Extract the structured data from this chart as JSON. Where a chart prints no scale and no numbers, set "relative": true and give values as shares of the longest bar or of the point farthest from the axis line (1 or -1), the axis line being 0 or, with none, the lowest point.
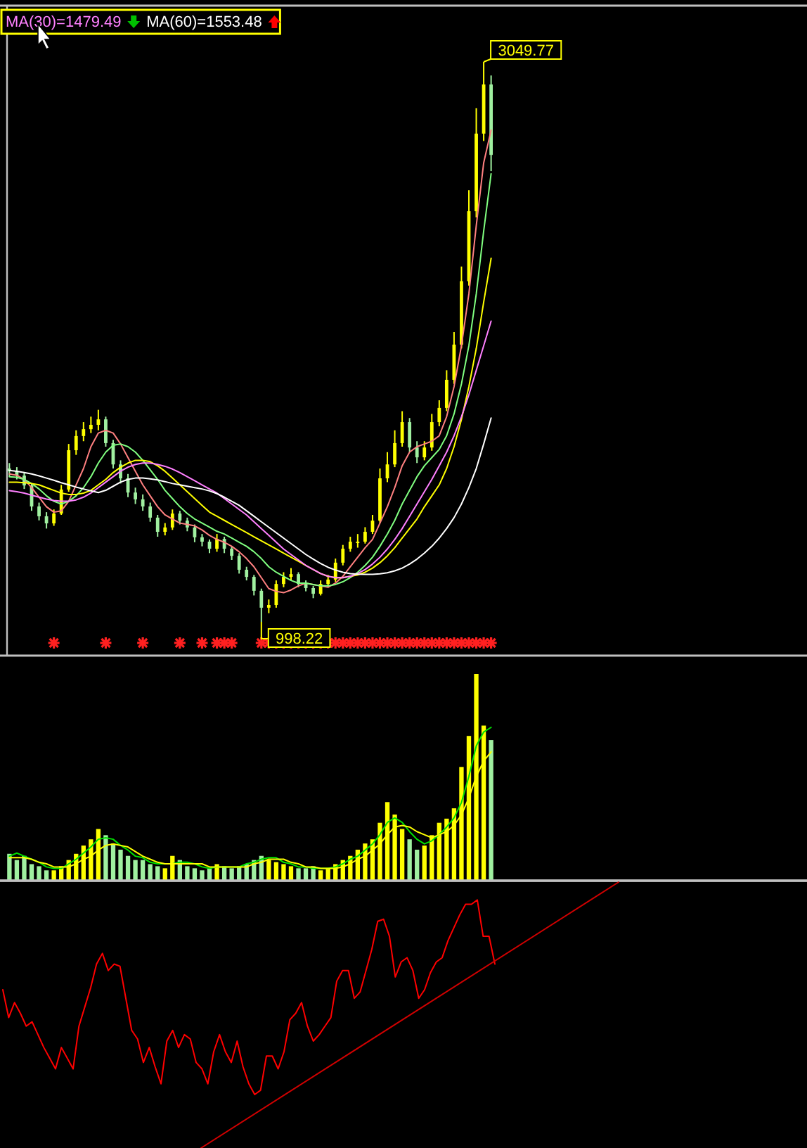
{
  "chart_data": [
    {
      "type": "candlestick",
      "legend": "top left",
      "categories": [
        null,
        null,
        null,
        null,
        null,
        null,
        null,
        null,
        null,
        null,
        null,
        null,
        null,
        null,
        null,
        null,
        null,
        null,
        null,
        null,
        null,
        null,
        null,
        null,
        null,
        null,
        null,
        null,
        null,
        null,
        null,
        null,
        null,
        null,
        null,
        null,
        null,
        null,
        null,
        null,
        null,
        null,
        null,
        null,
        null,
        null,
        null,
        null,
        null,
        null,
        null,
        null,
        null,
        null,
        null,
        null,
        null,
        null,
        null,
        null,
        null,
        null,
        null,
        null,
        null,
        null
      ],
      "ohlc": [
        [
          1560,
          1580,
          1530,
          1550
        ],
        [
          1550,
          1565,
          1520,
          1534
        ],
        [
          1534,
          1545,
          1485,
          1498
        ],
        [
          1498,
          1505,
          1405,
          1421
        ],
        [
          1421,
          1435,
          1370,
          1385
        ],
        [
          1385,
          1400,
          1340,
          1359
        ],
        [
          1359,
          1410,
          1350,
          1395
        ],
        [
          1395,
          1500,
          1390,
          1483
        ],
        [
          1483,
          1650,
          1475,
          1627
        ],
        [
          1627,
          1700,
          1610,
          1679
        ],
        [
          1679,
          1730,
          1660,
          1704
        ],
        [
          1704,
          1750,
          1690,
          1720
        ],
        [
          1720,
          1775,
          1700,
          1740
        ],
        [
          1740,
          1750,
          1640,
          1653
        ],
        [
          1653,
          1665,
          1560,
          1575
        ],
        [
          1575,
          1590,
          1505,
          1524
        ],
        [
          1524,
          1540,
          1455,
          1472
        ],
        [
          1472,
          1490,
          1430,
          1447
        ],
        [
          1447,
          1465,
          1405,
          1421
        ],
        [
          1421,
          1435,
          1365,
          1380
        ],
        [
          1380,
          1390,
          1310,
          1328
        ],
        [
          1328,
          1360,
          1315,
          1344
        ],
        [
          1344,
          1410,
          1335,
          1395
        ],
        [
          1395,
          1405,
          1355,
          1369
        ],
        [
          1369,
          1380,
          1330,
          1344
        ],
        [
          1344,
          1355,
          1290,
          1308
        ],
        [
          1308,
          1320,
          1275,
          1292
        ],
        [
          1292,
          1300,
          1250,
          1266
        ],
        [
          1266,
          1320,
          1255,
          1302
        ],
        [
          1302,
          1310,
          1250,
          1266
        ],
        [
          1266,
          1275,
          1225,
          1240
        ],
        [
          1240,
          1250,
          1175,
          1189
        ],
        [
          1189,
          1200,
          1150,
          1163
        ],
        [
          1163,
          1170,
          1095,
          1112
        ],
        [
          1112,
          1120,
          998.22,
          1050
        ],
        [
          1050,
          1080,
          1030,
          1060
        ],
        [
          1060,
          1150,
          1050,
          1137
        ],
        [
          1137,
          1180,
          1125,
          1163
        ],
        [
          1163,
          1195,
          1150,
          1173
        ],
        [
          1173,
          1180,
          1125,
          1137
        ],
        [
          1137,
          1150,
          1110,
          1122
        ],
        [
          1122,
          1130,
          1085,
          1101
        ],
        [
          1101,
          1150,
          1095,
          1137
        ],
        [
          1137,
          1170,
          1125,
          1153
        ],
        [
          1153,
          1230,
          1145,
          1215
        ],
        [
          1215,
          1280,
          1205,
          1266
        ],
        [
          1266,
          1310,
          1255,
          1292
        ],
        [
          1292,
          1320,
          1270,
          1292
        ],
        [
          1292,
          1345,
          1285,
          1328
        ],
        [
          1328,
          1390,
          1320,
          1369
        ],
        [
          1369,
          1560,
          1360,
          1524
        ],
        [
          1524,
          1620,
          1510,
          1575
        ],
        [
          1575,
          1700,
          1565,
          1653
        ],
        [
          1653,
          1770,
          1640,
          1730
        ],
        [
          1730,
          1745,
          1620,
          1637
        ],
        [
          1637,
          1660,
          1580,
          1601
        ],
        [
          1601,
          1660,
          1590,
          1637
        ],
        [
          1637,
          1760,
          1625,
          1730
        ],
        [
          1730,
          1810,
          1715,
          1782
        ],
        [
          1782,
          1920,
          1770,
          1885
        ],
        [
          1885,
          2060,
          1870,
          2014
        ],
        [
          2014,
          2300,
          2000,
          2246
        ],
        [
          2246,
          2580,
          2230,
          2503
        ],
        [
          2503,
          2880,
          2480,
          2787
        ],
        [
          2787,
          3049.77,
          2760,
          2967
        ],
        [
          2967,
          3000,
          2650,
          2709
        ]
      ],
      "colors": [
        "#a0f0a0",
        "#a0f0a0",
        "#a0f0a0",
        "#a0f0a0",
        "#a0f0a0",
        "#a0f0a0",
        "#ffff00",
        "#ffff00",
        "#ffff00",
        "#ffff00",
        "#ffff00",
        "#ffff00",
        "#ffff00",
        "#a0f0a0",
        "#a0f0a0",
        "#a0f0a0",
        "#a0f0a0",
        "#a0f0a0",
        "#a0f0a0",
        "#a0f0a0",
        "#a0f0a0",
        "#ffff00",
        "#ffff00",
        "#a0f0a0",
        "#a0f0a0",
        "#a0f0a0",
        "#a0f0a0",
        "#a0f0a0",
        "#ffff00",
        "#a0f0a0",
        "#a0f0a0",
        "#a0f0a0",
        "#a0f0a0",
        "#a0f0a0",
        "#a0f0a0",
        "#ffff00",
        "#ffff00",
        "#ffff00",
        "#ffff00",
        "#a0f0a0",
        "#a0f0a0",
        "#a0f0a0",
        "#ffff00",
        "#ffff00",
        "#ffff00",
        "#ffff00",
        "#ffff00",
        "#ffff00",
        "#ffff00",
        "#ffff00",
        "#ffff00",
        "#ffff00",
        "#ffff00",
        "#ffff00",
        "#a0f0a0",
        "#a0f0a0",
        "#ffff00",
        "#ffff00",
        "#ffff00",
        "#ffff00",
        "#ffff00",
        "#ffff00",
        "#ffff00",
        "#ffff00",
        "#ffff00",
        "#a0f0a0"
      ],
      "series": [
        {
          "type": "line",
          "color": "#ff8080",
          "values": [
            1540,
            1535,
            1520,
            1490,
            1455,
            1420,
            1400,
            1405,
            1440,
            1500,
            1560,
            1640,
            1690,
            1700,
            1690,
            1650,
            1600,
            1550,
            1500,
            1460,
            1420,
            1390,
            1375,
            1360,
            1355,
            1350,
            1335,
            1315,
            1300,
            1290,
            1275,
            1255,
            1230,
            1200,
            1160,
            1120,
            1110,
            1105,
            1115,
            1130,
            1140,
            1135,
            1130,
            1125,
            1140,
            1165,
            1200,
            1235,
            1270,
            1300,
            1360,
            1420,
            1490,
            1570,
            1620,
            1640,
            1650,
            1660,
            1680,
            1750,
            1860,
            2010,
            2200,
            2450,
            2680,
            2800
          ]
        },
        {
          "type": "line",
          "color": "#80ff80",
          "values": [
            1530,
            1528,
            1520,
            1505,
            1485,
            1460,
            1440,
            1430,
            1440,
            1460,
            1490,
            1530,
            1580,
            1620,
            1645,
            1650,
            1640,
            1620,
            1590,
            1555,
            1520,
            1480,
            1450,
            1420,
            1395,
            1375,
            1360,
            1345,
            1330,
            1320,
            1305,
            1290,
            1275,
            1255,
            1230,
            1200,
            1180,
            1165,
            1150,
            1140,
            1140,
            1135,
            1130,
            1130,
            1135,
            1145,
            1160,
            1180,
            1205,
            1235,
            1275,
            1320,
            1370,
            1430,
            1480,
            1530,
            1570,
            1600,
            1630,
            1680,
            1760,
            1870,
            2010,
            2200,
            2430,
            2640
          ]
        },
        {
          "type": "line",
          "color": "#ffff00",
          "values": [
            1510,
            1510,
            1508,
            1505,
            1500,
            1490,
            1480,
            1470,
            1465,
            1465,
            1470,
            1480,
            1500,
            1520,
            1545,
            1565,
            1580,
            1590,
            1590,
            1585,
            1570,
            1550,
            1525,
            1500,
            1475,
            1450,
            1425,
            1400,
            1385,
            1370,
            1355,
            1340,
            1325,
            1310,
            1295,
            1280,
            1265,
            1250,
            1235,
            1220,
            1205,
            1190,
            1175,
            1165,
            1160,
            1160,
            1165,
            1170,
            1180,
            1195,
            1215,
            1240,
            1270,
            1305,
            1340,
            1375,
            1420,
            1460,
            1500,
            1560,
            1640,
            1740,
            1860,
            2000,
            2170,
            2330
          ]
        },
        {
          "type": "line",
          "name": "MA(30)=1479.49",
          "color": "#ff80ff",
          "values": [
            1479,
            1475,
            1470,
            1462,
            1455,
            1448,
            1443,
            1440,
            1440,
            1445,
            1455,
            1470,
            1490,
            1510,
            1530,
            1550,
            1565,
            1575,
            1580,
            1580,
            1575,
            1568,
            1558,
            1545,
            1530,
            1515,
            1500,
            1485,
            1470,
            1450,
            1430,
            1410,
            1390,
            1365,
            1340,
            1315,
            1290,
            1265,
            1245,
            1225,
            1205,
            1190,
            1175,
            1165,
            1160,
            1160,
            1165,
            1175,
            1190,
            1210,
            1235,
            1265,
            1300,
            1340,
            1385,
            1430,
            1475,
            1520,
            1570,
            1620,
            1680,
            1750,
            1830,
            1920,
            2010,
            2100
          ]
        },
        {
          "type": "line",
          "name": "MA(60)=1553.48",
          "color": "#ffffff",
          "values": [
            1553,
            1550,
            1545,
            1540,
            1533,
            1525,
            1517,
            1508,
            1500,
            1492,
            1485,
            1478,
            1472,
            1480,
            1495,
            1510,
            1520,
            1525,
            1525,
            1522,
            1518,
            1512,
            1505,
            1500,
            1495,
            1490,
            1485,
            1478,
            1468,
            1455,
            1440,
            1425,
            1405,
            1385,
            1365,
            1345,
            1325,
            1305,
            1285,
            1265,
            1245,
            1228,
            1212,
            1198,
            1188,
            1180,
            1175,
            1173,
            1172,
            1172,
            1174,
            1178,
            1185,
            1195,
            1210,
            1228,
            1250,
            1275,
            1305,
            1340,
            1380,
            1430,
            1490,
            1560,
            1650,
            1745
          ]
        }
      ],
      "annotations": [
        "3049.77",
        "998.22"
      ]
    },
    {
      "type": "bar",
      "relative": true,
      "categories": [
        null,
        null,
        null,
        null,
        null,
        null,
        null,
        null,
        null,
        null,
        null,
        null,
        null,
        null,
        null,
        null,
        null,
        null,
        null,
        null,
        null,
        null,
        null,
        null,
        null,
        null,
        null,
        null,
        null,
        null,
        null,
        null,
        null,
        null,
        null,
        null,
        null,
        null,
        null,
        null,
        null,
        null,
        null,
        null,
        null,
        null,
        null,
        null,
        null,
        null,
        null,
        null,
        null,
        null,
        null,
        null,
        null,
        null,
        null,
        null,
        null,
        null,
        null,
        null,
        null,
        null
      ],
      "values": [
        0.13,
        0.1,
        0.12,
        0.08,
        0.07,
        0.05,
        0.05,
        0.07,
        0.1,
        0.13,
        0.17,
        0.2,
        0.25,
        0.22,
        0.18,
        0.15,
        0.12,
        0.1,
        0.1,
        0.08,
        0.07,
        0.06,
        0.12,
        0.1,
        0.07,
        0.06,
        0.05,
        0.06,
        0.08,
        0.07,
        0.06,
        0.07,
        0.08,
        0.1,
        0.12,
        0.1,
        0.09,
        0.08,
        0.07,
        0.06,
        0.06,
        0.07,
        0.05,
        0.06,
        0.08,
        0.1,
        0.12,
        0.15,
        0.18,
        0.2,
        0.28,
        0.38,
        0.32,
        0.25,
        0.2,
        0.15,
        0.17,
        0.22,
        0.28,
        0.3,
        0.35,
        0.55,
        0.7,
        1.0,
        0.75,
        0.68
      ],
      "colors": [
        "#a0f0a0",
        "#a0f0a0",
        "#a0f0a0",
        "#a0f0a0",
        "#a0f0a0",
        "#a0f0a0",
        "#ffff00",
        "#ffff00",
        "#ffff00",
        "#ffff00",
        "#ffff00",
        "#ffff00",
        "#ffff00",
        "#a0f0a0",
        "#a0f0a0",
        "#a0f0a0",
        "#a0f0a0",
        "#a0f0a0",
        "#a0f0a0",
        "#a0f0a0",
        "#a0f0a0",
        "#ffff00",
        "#ffff00",
        "#a0f0a0",
        "#a0f0a0",
        "#a0f0a0",
        "#a0f0a0",
        "#a0f0a0",
        "#ffff00",
        "#a0f0a0",
        "#a0f0a0",
        "#a0f0a0",
        "#a0f0a0",
        "#a0f0a0",
        "#a0f0a0",
        "#ffff00",
        "#ffff00",
        "#ffff00",
        "#ffff00",
        "#a0f0a0",
        "#a0f0a0",
        "#a0f0a0",
        "#ffff00",
        "#ffff00",
        "#ffff00",
        "#ffff00",
        "#ffff00",
        "#ffff00",
        "#ffff00",
        "#ffff00",
        "#ffff00",
        "#ffff00",
        "#ffff00",
        "#ffff00",
        "#a0f0a0",
        "#a0f0a0",
        "#ffff00",
        "#ffff00",
        "#ffff00",
        "#ffff00",
        "#ffff00",
        "#ffff00",
        "#ffff00",
        "#ffff00",
        "#ffff00",
        "#a0f0a0"
      ]
    },
    {
      "type": "line",
      "relative": true,
      "categories": [
        null,
        null,
        null,
        null,
        null,
        null,
        null,
        null,
        null,
        null,
        null,
        null,
        null,
        null,
        null,
        null,
        null,
        null,
        null,
        null,
        null,
        null,
        null,
        null,
        null,
        null,
        null,
        null,
        null,
        null,
        null,
        null,
        null,
        null,
        null,
        null,
        null,
        null,
        null,
        null,
        null,
        null,
        null,
        null,
        null,
        null,
        null,
        null,
        null,
        null,
        null,
        null,
        null,
        null,
        null,
        null,
        null,
        null,
        null,
        null,
        null,
        null,
        null,
        null,
        null,
        null
      ],
      "series": [
        {
          "color": "#00e000",
          "values": [
            0.16,
            0.18,
            0.16,
            0.14,
            0.12,
            0.09,
            0.08,
            0.08,
            0.11,
            0.14,
            0.18,
            0.22,
            0.27,
            0.28,
            0.27,
            0.23,
            0.2,
            0.16,
            0.15,
            0.12,
            0.11,
            0.11,
            0.11,
            0.12,
            0.12,
            0.11,
            0.09,
            0.08,
            0.09,
            0.09,
            0.09,
            0.09,
            0.11,
            0.12,
            0.14,
            0.15,
            0.15,
            0.12,
            0.11,
            0.09,
            0.09,
            0.08,
            0.08,
            0.08,
            0.09,
            0.11,
            0.14,
            0.16,
            0.2,
            0.24,
            0.3,
            0.38,
            0.41,
            0.38,
            0.32,
            0.27,
            0.24,
            0.26,
            0.3,
            0.35,
            0.41,
            0.51,
            0.68,
            0.88,
            0.97,
            1
          ]
        },
        {
          "color": "#ffff00",
          "values": [
            0.15,
            0.15,
            0.15,
            0.14,
            0.12,
            0.11,
            0.09,
            0.09,
            0.09,
            0.11,
            0.14,
            0.16,
            0.2,
            0.23,
            0.24,
            0.23,
            0.22,
            0.19,
            0.16,
            0.14,
            0.12,
            0.11,
            0.11,
            0.11,
            0.11,
            0.11,
            0.11,
            0.09,
            0.09,
            0.09,
            0.09,
            0.09,
            0.09,
            0.11,
            0.12,
            0.14,
            0.14,
            0.14,
            0.12,
            0.11,
            0.09,
            0.09,
            0.08,
            0.08,
            0.08,
            0.09,
            0.11,
            0.14,
            0.16,
            0.2,
            0.24,
            0.3,
            0.35,
            0.36,
            0.35,
            0.32,
            0.3,
            0.28,
            0.3,
            0.32,
            0.36,
            0.43,
            0.54,
            0.68,
            0.78,
            0.84
          ]
        }
      ]
    },
    {
      "type": "line",
      "relative": true,
      "categories": [
        null,
        null,
        null,
        null,
        null,
        null,
        null,
        null,
        null,
        null,
        null,
        null,
        null,
        null,
        null,
        null,
        null,
        null,
        null,
        null,
        null,
        null,
        null,
        null,
        null,
        null,
        null,
        null,
        null,
        null,
        null,
        null,
        null,
        null,
        null,
        null,
        null,
        null,
        null,
        null,
        null,
        null,
        null,
        null,
        null,
        null,
        null,
        null,
        null,
        null,
        null,
        null,
        null,
        null,
        null,
        null,
        null,
        null,
        null,
        null,
        null,
        null,
        null,
        null,
        null,
        null,
        null,
        null,
        null,
        null,
        null,
        null,
        null,
        null,
        null,
        null,
        null,
        null,
        null,
        null,
        null,
        null,
        null,
        null,
        null
      ],
      "series": [
        {
          "color": "#ff0000",
          "values": [
            -0.51,
            -0.64,
            -0.57,
            -0.62,
            -0.68,
            -0.66,
            -0.72,
            -0.78,
            -0.83,
            -0.88,
            -0.78,
            -0.83,
            -0.88,
            -0.68,
            -0.59,
            -0.5,
            -0.39,
            -0.34,
            -0.42,
            -0.39,
            -0.4,
            -0.55,
            -0.7,
            -0.74,
            -0.85,
            -0.78,
            -0.87,
            -0.95,
            -0.75,
            -0.7,
            -0.78,
            -0.72,
            -0.74,
            -0.85,
            -0.88,
            -0.95,
            -0.8,
            -0.72,
            -0.8,
            -0.85,
            -0.75,
            -0.87,
            -0.95,
            -1,
            -0.98,
            -0.82,
            -0.82,
            -0.88,
            -0.8,
            -0.65,
            -0.62,
            -0.57,
            -0.68,
            -0.75,
            -0.72,
            -0.68,
            -0.64,
            -0.47,
            -0.42,
            -0.42,
            -0.55,
            -0.52,
            -0.42,
            -0.32,
            -0.19,
            -0.18,
            -0.26,
            -0.45,
            -0.38,
            -0.36,
            -0.42,
            -0.55,
            -0.51,
            -0.43,
            -0.38,
            -0.36,
            -0.28,
            -0.22,
            -0.16,
            -0.11,
            -0.11,
            -0.09,
            -0.26,
            -0.26,
            -0.39
          ]
        }
      ]
    },
    {
      "type": "line",
      "relative": true,
      "categories": [
        null,
        null
      ],
      "series": [
        {
          "color": "#d00000",
          "values": [
            0,
            1
          ]
        }
      ]
    }
  ]
}
